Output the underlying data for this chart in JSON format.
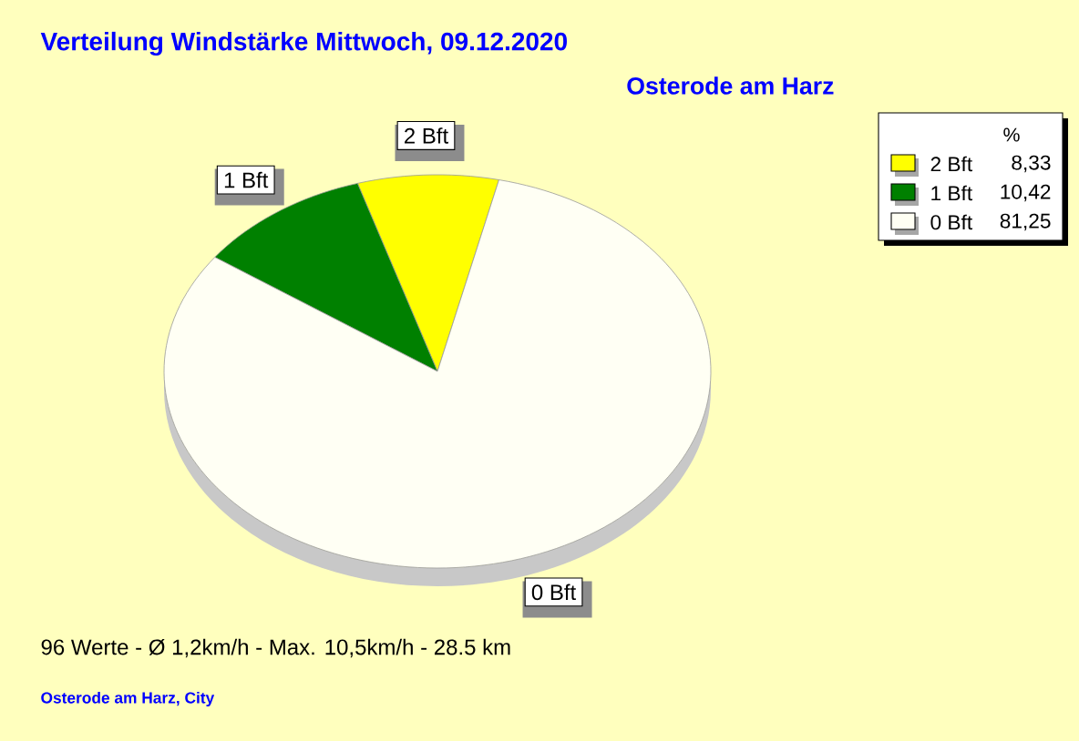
{
  "chart_data": {
    "type": "pie",
    "title": "Verteilung Windstärke  Mittwoch, 09.12.2020",
    "subtitle": "Osterode am Harz",
    "categories": [
      "2 Bft",
      "1 Bft",
      "0 Bft"
    ],
    "values": [
      8.33,
      10.42,
      81.25
    ],
    "value_labels": [
      "8,33",
      "10,42",
      "81,25"
    ],
    "colors": [
      "#ffff00",
      "#008000",
      "#fffff4"
    ],
    "legend": "top right",
    "legend_title": "%",
    "annotations": [
      "96 Werte   -   Ø 1,2km/h  -  Max. 10,5km/h   -   28.5 km",
      "Osterode am Harz, City"
    ]
  }
}
